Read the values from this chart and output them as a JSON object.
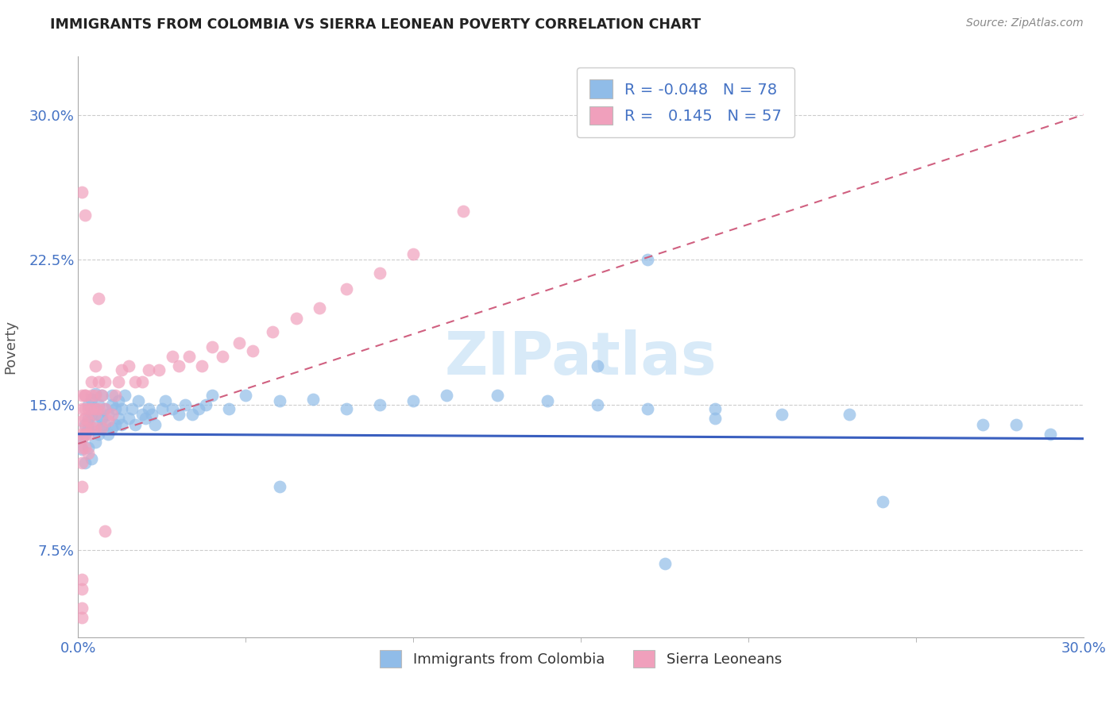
{
  "title": "IMMIGRANTS FROM COLOMBIA VS SIERRA LEONEAN POVERTY CORRELATION CHART",
  "source": "Source: ZipAtlas.com",
  "ylabel": "Poverty",
  "xlim": [
    0.0,
    0.3
  ],
  "ylim": [
    0.03,
    0.33
  ],
  "yticks": [
    0.075,
    0.15,
    0.225,
    0.3
  ],
  "ytick_labels": [
    "7.5%",
    "15.0%",
    "22.5%",
    "30.0%"
  ],
  "xticks": [
    0.0,
    0.3
  ],
  "xtick_labels": [
    "0.0%",
    "30.0%"
  ],
  "blue_color": "#90BCE8",
  "pink_color": "#F0A0BC",
  "blue_line_color": "#3A5FBF",
  "pink_line_color": "#D06080",
  "legend_blue_R": "-0.048",
  "legend_blue_N": "78",
  "legend_pink_R": "0.145",
  "legend_pink_N": "57",
  "watermark": "ZIPatlas",
  "watermark_color": "#D8EAF8",
  "background_color": "#FFFFFF",
  "grid_color": "#CCCCCC",
  "title_color": "#222222",
  "axis_label_color": "#555555",
  "tick_label_color": "#4472C4",
  "legend_label1": "Immigrants from Colombia",
  "legend_label2": "Sierra Leoneans",
  "blue_scatter_x": [
    0.001,
    0.001,
    0.002,
    0.002,
    0.002,
    0.003,
    0.003,
    0.003,
    0.003,
    0.004,
    0.004,
    0.004,
    0.005,
    0.005,
    0.005,
    0.005,
    0.006,
    0.006,
    0.006,
    0.007,
    0.007,
    0.007,
    0.008,
    0.008,
    0.009,
    0.009,
    0.01,
    0.01,
    0.01,
    0.011,
    0.011,
    0.012,
    0.012,
    0.013,
    0.013,
    0.014,
    0.015,
    0.016,
    0.017,
    0.018,
    0.019,
    0.02,
    0.021,
    0.022,
    0.023,
    0.025,
    0.026,
    0.028,
    0.03,
    0.032,
    0.034,
    0.036,
    0.038,
    0.04,
    0.045,
    0.05,
    0.06,
    0.07,
    0.08,
    0.09,
    0.1,
    0.11,
    0.125,
    0.14,
    0.155,
    0.17,
    0.19,
    0.21,
    0.23,
    0.155,
    0.19,
    0.06,
    0.175,
    0.28,
    0.24,
    0.27,
    0.17,
    0.29
  ],
  "blue_scatter_y": [
    0.127,
    0.133,
    0.12,
    0.14,
    0.135,
    0.128,
    0.143,
    0.138,
    0.15,
    0.122,
    0.145,
    0.153,
    0.131,
    0.14,
    0.148,
    0.156,
    0.135,
    0.145,
    0.15,
    0.138,
    0.143,
    0.155,
    0.14,
    0.148,
    0.135,
    0.145,
    0.138,
    0.15,
    0.155,
    0.14,
    0.148,
    0.143,
    0.152,
    0.14,
    0.148,
    0.155,
    0.143,
    0.148,
    0.14,
    0.152,
    0.145,
    0.143,
    0.148,
    0.145,
    0.14,
    0.148,
    0.152,
    0.148,
    0.145,
    0.15,
    0.145,
    0.148,
    0.15,
    0.155,
    0.148,
    0.155,
    0.152,
    0.153,
    0.148,
    0.15,
    0.152,
    0.155,
    0.155,
    0.152,
    0.15,
    0.148,
    0.148,
    0.145,
    0.145,
    0.17,
    0.143,
    0.108,
    0.068,
    0.14,
    0.1,
    0.14,
    0.225,
    0.135
  ],
  "pink_scatter_x": [
    0.001,
    0.001,
    0.001,
    0.001,
    0.001,
    0.001,
    0.001,
    0.001,
    0.002,
    0.002,
    0.002,
    0.002,
    0.002,
    0.003,
    0.003,
    0.003,
    0.003,
    0.004,
    0.004,
    0.004,
    0.004,
    0.005,
    0.005,
    0.005,
    0.005,
    0.005,
    0.006,
    0.006,
    0.007,
    0.007,
    0.008,
    0.008,
    0.009,
    0.01,
    0.011,
    0.012,
    0.013,
    0.015,
    0.017,
    0.019,
    0.021,
    0.024,
    0.028,
    0.03,
    0.033,
    0.037,
    0.04,
    0.043,
    0.048,
    0.052,
    0.058,
    0.065,
    0.072,
    0.08,
    0.09,
    0.1,
    0.115
  ],
  "pink_scatter_y": [
    0.148,
    0.135,
    0.142,
    0.128,
    0.12,
    0.133,
    0.108,
    0.155,
    0.148,
    0.138,
    0.155,
    0.143,
    0.128,
    0.148,
    0.142,
    0.135,
    0.125,
    0.148,
    0.155,
    0.138,
    0.162,
    0.145,
    0.155,
    0.138,
    0.148,
    0.17,
    0.162,
    0.148,
    0.155,
    0.138,
    0.148,
    0.162,
    0.142,
    0.145,
    0.155,
    0.162,
    0.168,
    0.17,
    0.162,
    0.162,
    0.168,
    0.168,
    0.175,
    0.17,
    0.175,
    0.17,
    0.18,
    0.175,
    0.182,
    0.178,
    0.188,
    0.195,
    0.2,
    0.21,
    0.218,
    0.228,
    0.25
  ],
  "pink_outliers_x": [
    0.001,
    0.002,
    0.006,
    0.002,
    0.002,
    0.001,
    0.001,
    0.001,
    0.001,
    0.008
  ],
  "pink_outliers_y": [
    0.26,
    0.248,
    0.205,
    0.155,
    0.135,
    0.06,
    0.055,
    0.045,
    0.04,
    0.085
  ]
}
